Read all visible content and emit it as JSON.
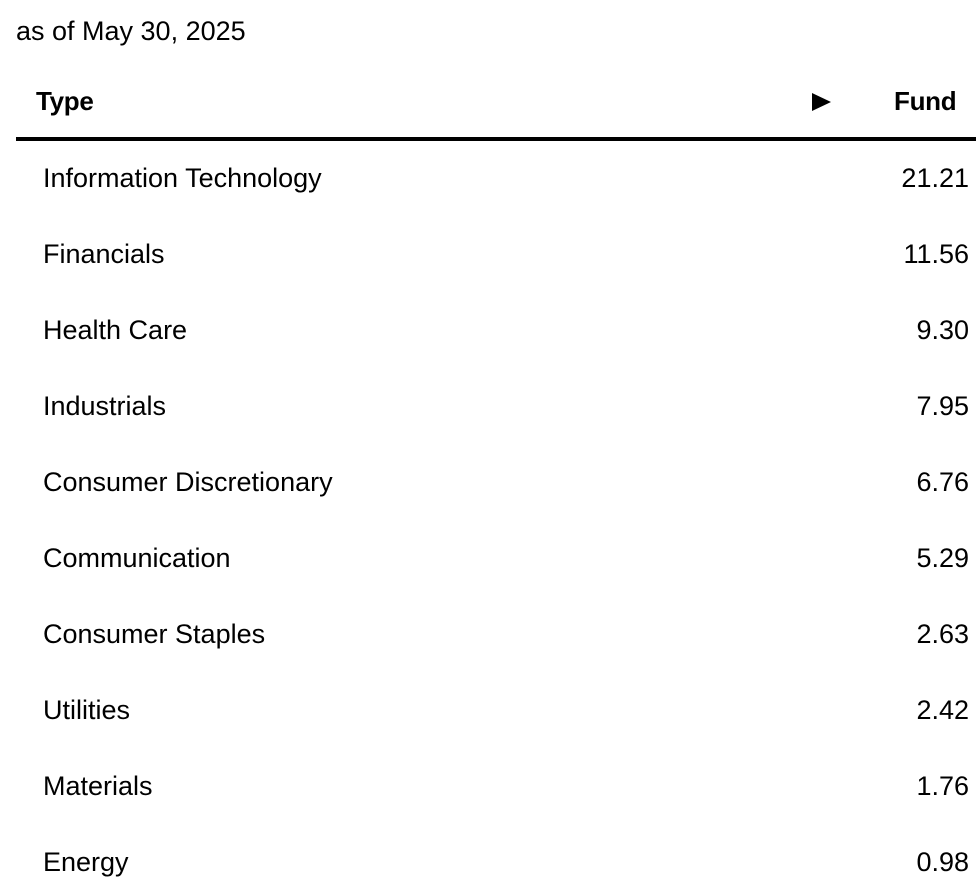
{
  "header": {
    "date": "as of May 30, 2025"
  },
  "table": {
    "columns": [
      "Type",
      "Fund"
    ],
    "rows": [
      [
        "Information Technology",
        "21.21"
      ],
      [
        "Financials",
        "11.56"
      ],
      [
        "Health Care",
        "9.30"
      ],
      [
        "Industrials",
        "7.95"
      ],
      [
        "Consumer Discretionary",
        "6.76"
      ],
      [
        "Communication",
        "5.29"
      ],
      [
        "Consumer Staples",
        "2.63"
      ],
      [
        "Utilities",
        "2.42"
      ],
      [
        "Materials",
        "1.76"
      ],
      [
        "Energy",
        "0.98"
      ]
    ]
  }
}
